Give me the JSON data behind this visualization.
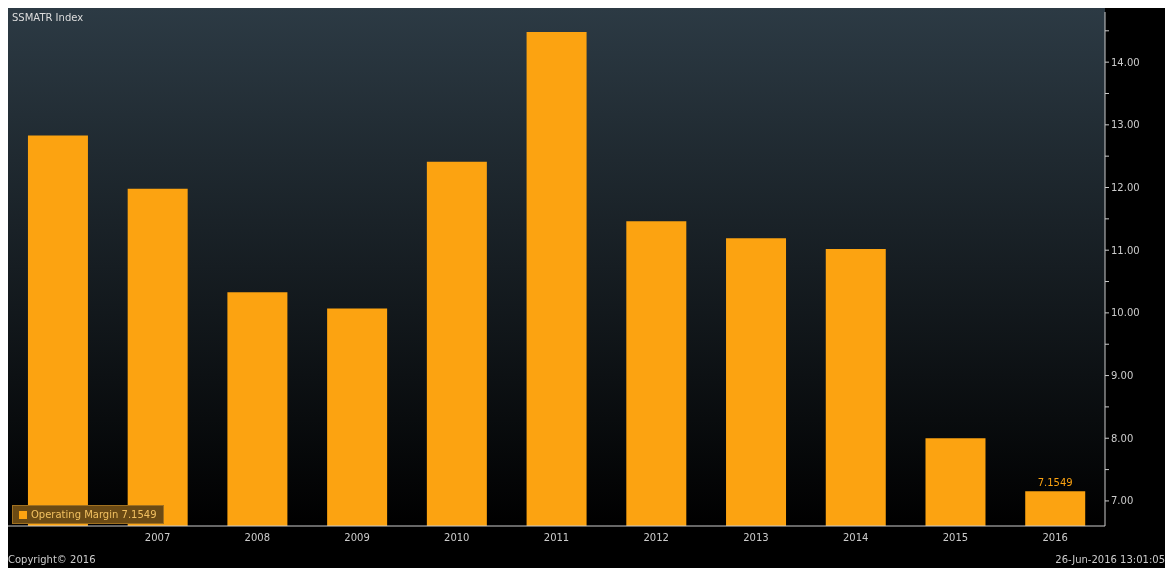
{
  "chart_data": {
    "type": "bar",
    "title": "SSMATR Index",
    "categories": [
      null,
      "2007",
      "2008",
      "2009",
      "2010",
      "2011",
      "2012",
      "2013",
      "2014",
      "2015",
      "2016"
    ],
    "series": [
      {
        "name": "Operating Margin",
        "color": "#fca311",
        "values": [
          12.83,
          11.98,
          10.33,
          10.07,
          12.41,
          14.48,
          11.46,
          11.19,
          11.02,
          8.0,
          7.1549
        ],
        "value_labels": [
          null,
          null,
          null,
          null,
          null,
          null,
          null,
          null,
          null,
          null,
          "7.1549"
        ]
      }
    ],
    "ylim": [
      6.6,
      14.8
    ],
    "yticks": [
      {
        "value": 7,
        "label": "7.00"
      },
      {
        "value": 7.5,
        "label": null
      },
      {
        "value": 8,
        "label": "8.00"
      },
      {
        "value": 8.5,
        "label": null
      },
      {
        "value": 9,
        "label": "9.00"
      },
      {
        "value": 9.5,
        "label": null
      },
      {
        "value": 10,
        "label": "10.00"
      },
      {
        "value": 10.5,
        "label": null
      },
      {
        "value": 11,
        "label": "11.00"
      },
      {
        "value": 11.5,
        "label": null
      },
      {
        "value": 12,
        "label": "12.00"
      },
      {
        "value": 12.5,
        "label": null
      },
      {
        "value": 13,
        "label": "13.00"
      },
      {
        "value": 13.5,
        "label": null
      },
      {
        "value": 14,
        "label": "14.00"
      },
      {
        "value": 14.5,
        "label": null
      }
    ],
    "legend": "bottom left",
    "annotations": [
      "Copyright© 2016",
      "26-Jun-2016 13:01:05"
    ]
  }
}
